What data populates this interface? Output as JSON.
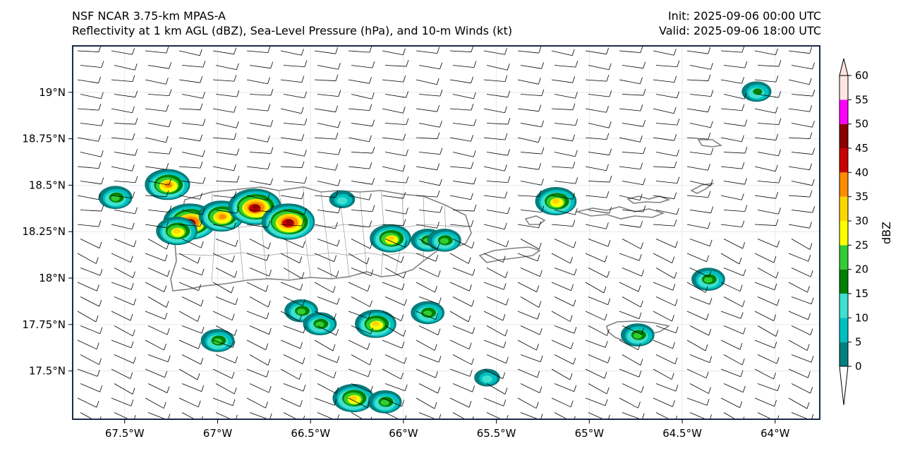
{
  "header": {
    "model": "NSF NCAR 3.75-km MPAS-A",
    "fields": "Reflectivity at 1 km AGL (dBZ), Sea-Level Pressure (hPa), and 10-m Winds (kt)",
    "init": "Init: 2025-09-06 00:00 UTC",
    "valid": "Valid: 2025-09-06 18:00 UTC"
  },
  "map": {
    "lon_ticks": [
      "67.5°W",
      "67°W",
      "66.5°W",
      "66°W",
      "65.5°W",
      "65°W",
      "64.5°W",
      "64°W"
    ],
    "lat_ticks": [
      "19°N",
      "18.75°N",
      "18.5°N",
      "18.25°N",
      "18°N",
      "17.75°N",
      "17.5°N"
    ],
    "lon_values": [
      -67.5,
      -67.0,
      -66.5,
      -66.0,
      -65.5,
      -65.0,
      -64.5,
      -64.0
    ],
    "lat_values": [
      19.0,
      18.75,
      18.5,
      18.25,
      18.0,
      17.75,
      17.5
    ],
    "lon_range": [
      -67.78,
      -63.76
    ],
    "lat_range": [
      17.24,
      19.25
    ],
    "coastline_color": "#808080",
    "barb_color": "#000000"
  },
  "colorbar": {
    "label": "dBZ",
    "ticks": [
      "0",
      "5",
      "10",
      "15",
      "20",
      "25",
      "30",
      "35",
      "40",
      "45",
      "50",
      "55",
      "60"
    ],
    "colors": [
      "#008080",
      "#00c0c0",
      "#40e0d0",
      "#008000",
      "#32cd32",
      "#ffff00",
      "#ffd700",
      "#ff8c00",
      "#cc0000",
      "#8b0000",
      "#ff00ff",
      "#ffe4e1"
    ]
  },
  "chart_data": {
    "type": "heatmap",
    "variable": "Reflectivity at 1 km AGL",
    "units": "dBZ",
    "colorbar_range": [
      0,
      60
    ],
    "cells": [
      {
        "lon": -67.27,
        "lat": 18.5,
        "max_dbz": 35
      },
      {
        "lon": -67.15,
        "lat": 18.3,
        "max_dbz": 45
      },
      {
        "lon": -66.98,
        "lat": 18.33,
        "max_dbz": 35
      },
      {
        "lon": -66.8,
        "lat": 18.38,
        "max_dbz": 45
      },
      {
        "lon": -66.62,
        "lat": 18.3,
        "max_dbz": 45
      },
      {
        "lon": -67.22,
        "lat": 18.25,
        "max_dbz": 30
      },
      {
        "lon": -67.55,
        "lat": 18.43,
        "max_dbz": 20
      },
      {
        "lon": -66.07,
        "lat": 18.21,
        "max_dbz": 30
      },
      {
        "lon": -65.87,
        "lat": 18.2,
        "max_dbz": 20
      },
      {
        "lon": -65.78,
        "lat": 18.2,
        "max_dbz": 20
      },
      {
        "lon": -66.33,
        "lat": 18.42,
        "max_dbz": 10
      },
      {
        "lon": -65.18,
        "lat": 18.41,
        "max_dbz": 30
      },
      {
        "lon": -66.55,
        "lat": 17.82,
        "max_dbz": 20
      },
      {
        "lon": -66.45,
        "lat": 17.75,
        "max_dbz": 20
      },
      {
        "lon": -66.15,
        "lat": 17.75,
        "max_dbz": 30
      },
      {
        "lon": -65.87,
        "lat": 17.81,
        "max_dbz": 20
      },
      {
        "lon": -67.0,
        "lat": 17.66,
        "max_dbz": 20
      },
      {
        "lon": -66.27,
        "lat": 17.35,
        "max_dbz": 30
      },
      {
        "lon": -66.1,
        "lat": 17.33,
        "max_dbz": 20
      },
      {
        "lon": -65.55,
        "lat": 17.46,
        "max_dbz": 10
      },
      {
        "lon": -64.36,
        "lat": 17.99,
        "max_dbz": 20
      },
      {
        "lon": -64.74,
        "lat": 17.69,
        "max_dbz": 20
      },
      {
        "lon": -64.1,
        "lat": 19.0,
        "max_dbz": 15
      }
    ]
  }
}
